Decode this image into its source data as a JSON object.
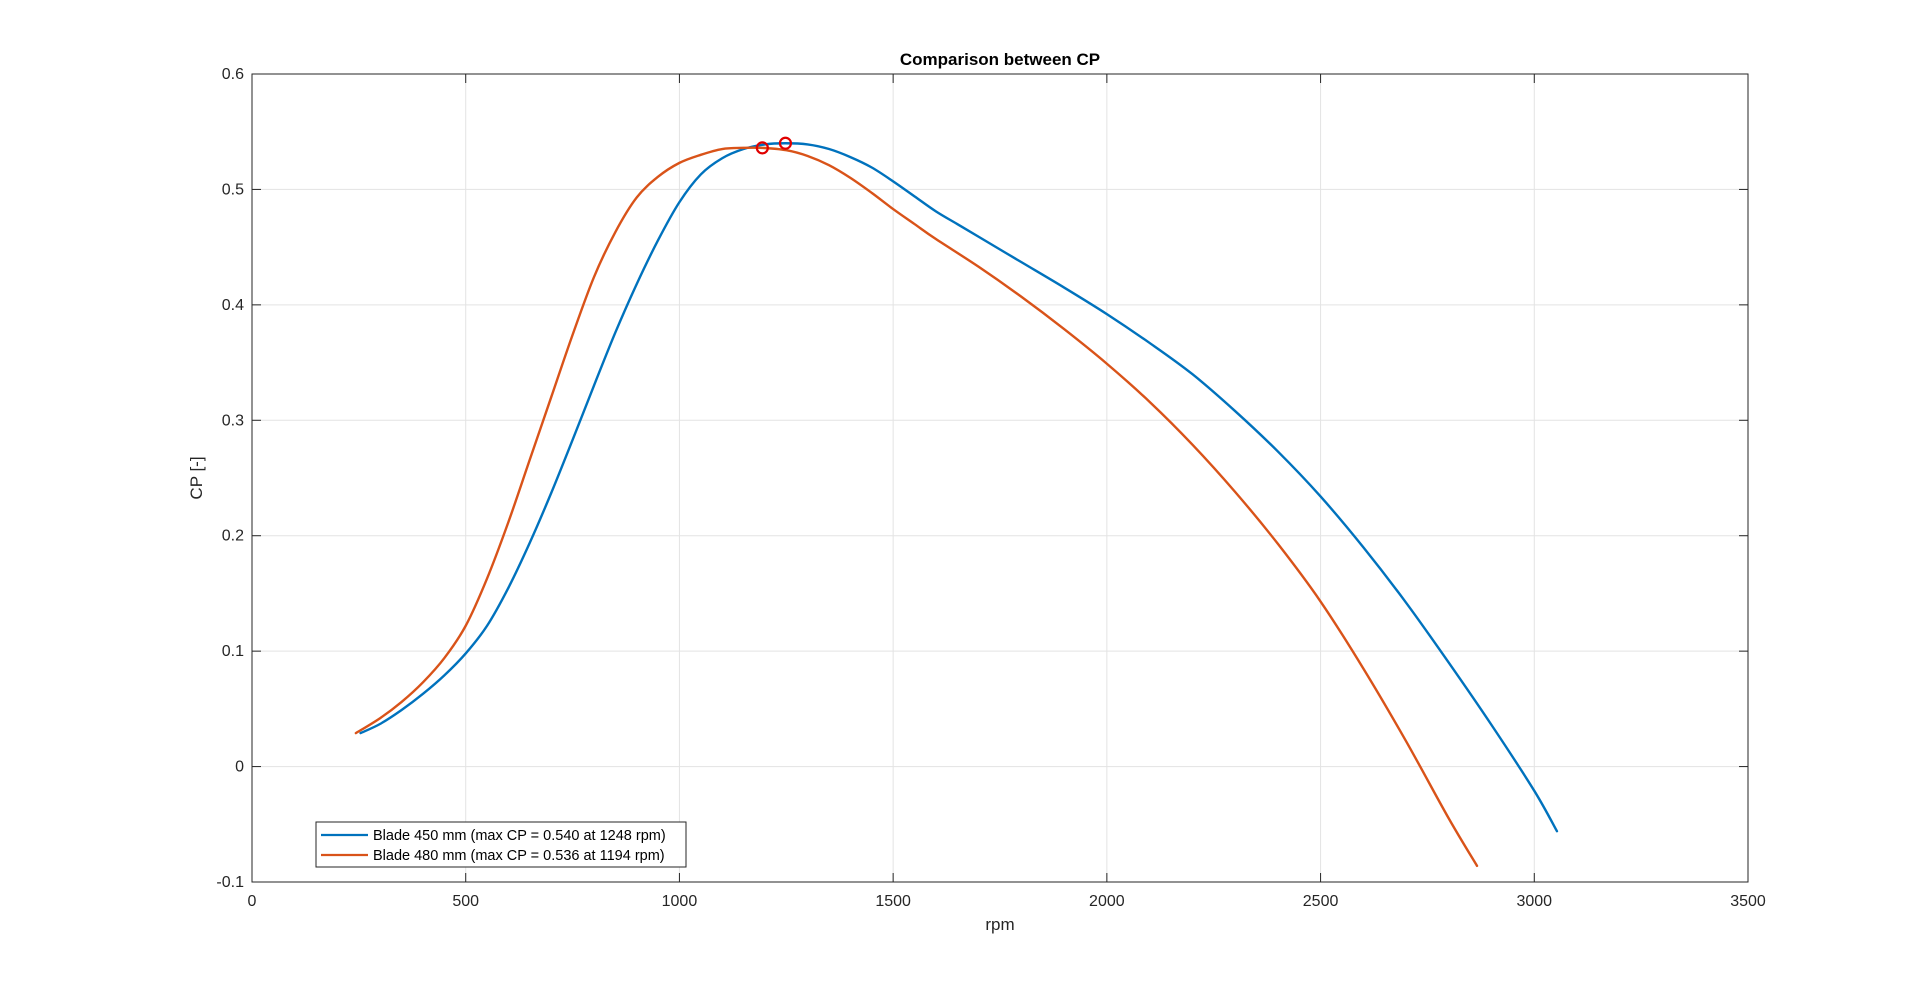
{
  "chart_data": {
    "type": "line",
    "title": "Comparison between CP",
    "xlabel": "rpm",
    "ylabel": "CP [-]",
    "xlim": [
      0,
      3500
    ],
    "ylim": [
      -0.1,
      0.6
    ],
    "xticks": [
      0,
      500,
      1000,
      1500,
      2000,
      2500,
      3000,
      3500
    ],
    "yticks": [
      -0.1,
      0,
      0.1,
      0.2,
      0.3,
      0.4,
      0.5,
      0.6
    ],
    "xtick_labels": [
      "0",
      "500",
      "1000",
      "1500",
      "2000",
      "2500",
      "3000",
      "3500"
    ],
    "ytick_labels": [
      "-0.1",
      "0",
      "0.1",
      "0.2",
      "0.3",
      "0.4",
      "0.5",
      "0.6"
    ],
    "grid": true,
    "legend_position": "bottom-left",
    "series": [
      {
        "name": "Blade 450 mm (max CP = 0.540 at 1248 rpm)",
        "color": "#0072BD",
        "x": [
          254,
          300,
          350,
          400,
          450,
          500,
          550,
          600,
          650,
          700,
          750,
          800,
          850,
          900,
          950,
          1000,
          1050,
          1100,
          1150,
          1200,
          1248,
          1300,
          1350,
          1400,
          1450,
          1500,
          1550,
          1600,
          1650,
          1700,
          1800,
          1900,
          2000,
          2100,
          2200,
          2300,
          2400,
          2500,
          2600,
          2700,
          2800,
          2900,
          3000,
          3053
        ],
        "y": [
          0.029,
          0.037,
          0.049,
          0.063,
          0.079,
          0.098,
          0.122,
          0.155,
          0.194,
          0.237,
          0.283,
          0.33,
          0.376,
          0.418,
          0.456,
          0.489,
          0.513,
          0.527,
          0.535,
          0.539,
          0.54,
          0.539,
          0.535,
          0.528,
          0.519,
          0.507,
          0.494,
          0.481,
          0.47,
          0.459,
          0.437,
          0.415,
          0.392,
          0.367,
          0.34,
          0.308,
          0.273,
          0.234,
          0.19,
          0.142,
          0.09,
          0.036,
          -0.021,
          -0.056
        ]
      },
      {
        "name": "Blade 480 mm (max CP = 0.536 at 1194 rpm)",
        "color": "#D95319",
        "x": [
          243,
          300,
          350,
          400,
          450,
          500,
          550,
          600,
          650,
          700,
          750,
          800,
          850,
          900,
          950,
          1000,
          1050,
          1100,
          1150,
          1194,
          1250,
          1300,
          1350,
          1400,
          1450,
          1500,
          1550,
          1600,
          1700,
          1800,
          1900,
          2000,
          2100,
          2200,
          2300,
          2400,
          2500,
          2600,
          2700,
          2800,
          2866
        ],
        "y": [
          0.029,
          0.042,
          0.056,
          0.073,
          0.094,
          0.122,
          0.163,
          0.212,
          0.266,
          0.32,
          0.374,
          0.424,
          0.463,
          0.493,
          0.511,
          0.523,
          0.53,
          0.535,
          0.536,
          0.536,
          0.534,
          0.529,
          0.521,
          0.51,
          0.497,
          0.483,
          0.47,
          0.457,
          0.433,
          0.407,
          0.379,
          0.349,
          0.316,
          0.279,
          0.238,
          0.193,
          0.143,
          0.085,
          0.022,
          -0.045,
          -0.086
        ]
      }
    ],
    "markers": [
      {
        "series": "Blade 450 mm (max CP = 0.540 at 1248 rpm)",
        "x": 1248,
        "y": 0.54,
        "shape": "circle",
        "color": "#E00000"
      },
      {
        "series": "Blade 480 mm (max CP = 0.536 at 1194 rpm)",
        "x": 1194,
        "y": 0.536,
        "shape": "circle",
        "color": "#E00000"
      }
    ]
  }
}
